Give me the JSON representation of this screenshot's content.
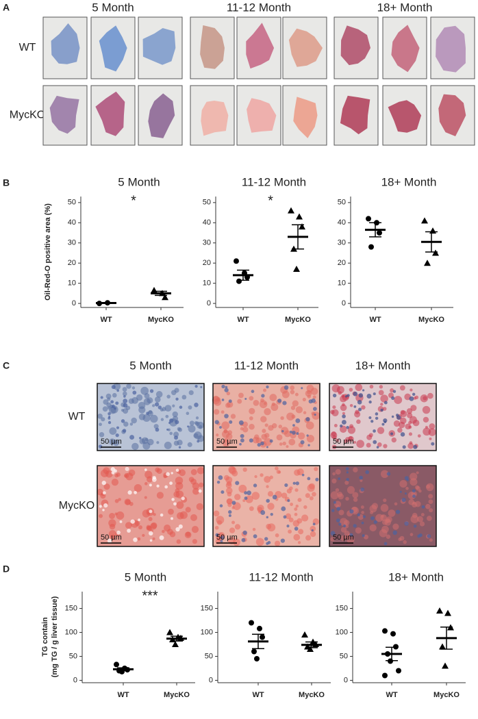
{
  "panel_a": {
    "label": "A",
    "columns": [
      "5 Month",
      "11-12 Month",
      "18+ Month"
    ],
    "rows": [
      "WT",
      "MycKO"
    ]
  },
  "panel_b": {
    "label": "B",
    "y_label": "Oil-Red-O positive area (%)"
  },
  "panel_c": {
    "label": "C",
    "columns": [
      "5 Month",
      "11-12 Month",
      "18+ Month"
    ],
    "rows": [
      "WT",
      "MycKO"
    ],
    "scale_bars": [
      [
        "50 µm",
        "50 µm",
        "50 µm"
      ],
      [
        "50 µm",
        "50 µm",
        "50 µm"
      ]
    ]
  },
  "panel_d": {
    "label": "D",
    "y_label": [
      "TG contain",
      "(mg TG / g liver tissue)"
    ]
  },
  "chart_data": [
    {
      "type": "dot",
      "title": "5 Month",
      "annotation": "*",
      "ylim": [
        -2,
        53
      ],
      "yticks": [
        0,
        10,
        20,
        30,
        40,
        50
      ],
      "series": [
        {
          "name": "WT",
          "marker": "circle",
          "color": "#000",
          "values": [
            0,
            0.3
          ],
          "mean": 0.2,
          "sem": 0.2
        },
        {
          "name": "MycKO",
          "marker": "triangle",
          "color": "#000",
          "values": [
            6.5,
            5,
            3
          ],
          "mean": 5,
          "sem": 1
        }
      ]
    },
    {
      "type": "dot",
      "title": "11-12 Month",
      "annotation": "*",
      "ylim": [
        -2,
        53
      ],
      "yticks": [
        0,
        10,
        20,
        30,
        40,
        50
      ],
      "series": [
        {
          "name": "WT",
          "marker": "circle",
          "color": "#000",
          "values": [
            21,
            15,
            13,
            11
          ],
          "mean": 14,
          "sem": 2.5
        },
        {
          "name": "MycKO",
          "marker": "triangle",
          "color": "#000",
          "values": [
            46,
            43,
            38,
            27,
            17
          ],
          "mean": 33,
          "sem": 6
        }
      ]
    },
    {
      "type": "dot",
      "title": "18+ Month",
      "ylim": [
        -2,
        53
      ],
      "yticks": [
        0,
        10,
        20,
        30,
        40,
        50
      ],
      "series": [
        {
          "name": "WT",
          "marker": "circle",
          "color": "#000",
          "values": [
            42,
            40,
            35,
            28
          ],
          "mean": 36.5,
          "sem": 3.5
        },
        {
          "name": "MycKO",
          "marker": "triangle",
          "color": "#000",
          "values": [
            41,
            36,
            25,
            20
          ],
          "mean": 30.5,
          "sem": 5
        }
      ]
    },
    {
      "type": "dot",
      "title": "5 Month",
      "annotation": "***",
      "ylim": [
        -5,
        185
      ],
      "yticks": [
        0,
        50,
        100,
        150
      ],
      "series": [
        {
          "name": "WT",
          "marker": "circle",
          "color": "#000",
          "values": [
            33,
            25,
            22,
            20,
            18
          ],
          "mean": 23,
          "sem": 3
        },
        {
          "name": "MycKO",
          "marker": "triangle",
          "color": "#000",
          "values": [
            100,
            90,
            88,
            85,
            75
          ],
          "mean": 87,
          "sem": 5
        }
      ]
    },
    {
      "type": "dot",
      "title": "11-12 Month",
      "ylim": [
        -5,
        185
      ],
      "yticks": [
        0,
        50,
        100,
        150
      ],
      "series": [
        {
          "name": "WT",
          "marker": "circle",
          "color": "#000",
          "values": [
            120,
            108,
            90,
            60,
            45
          ],
          "mean": 81,
          "sem": 15
        },
        {
          "name": "MycKO",
          "marker": "triangle",
          "color": "#000",
          "values": [
            95,
            80,
            75,
            70,
            65
          ],
          "mean": 74,
          "sem": 6
        }
      ]
    },
    {
      "type": "dot",
      "title": "18+ Month",
      "ylim": [
        -5,
        185
      ],
      "yticks": [
        0,
        50,
        100,
        150
      ],
      "series": [
        {
          "name": "WT",
          "marker": "circle",
          "color": "#000",
          "values": [
            103,
            97,
            70,
            55,
            40,
            20,
            10
          ],
          "mean": 55,
          "sem": 14
        },
        {
          "name": "MycKO",
          "marker": "triangle",
          "color": "#000",
          "values": [
            145,
            140,
            110,
            70,
            30
          ],
          "mean": 88,
          "sem": 23
        }
      ]
    }
  ]
}
